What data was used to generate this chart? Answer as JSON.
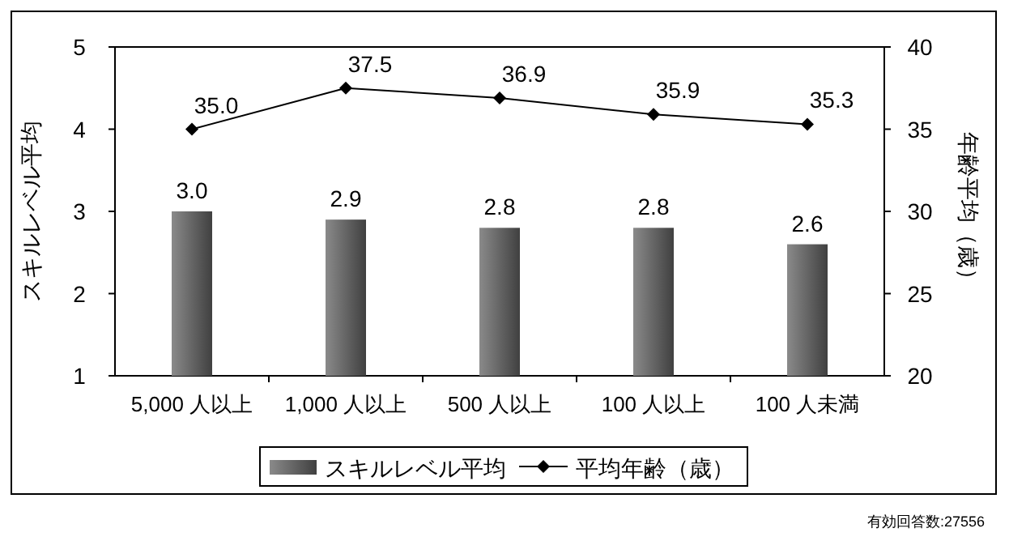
{
  "chart_data": {
    "type": "bar",
    "categories": [
      "5,000 人以上",
      "1,000 人以上",
      "500 人以上",
      "100 人以上",
      "100 人未満"
    ],
    "series": [
      {
        "name": "スキルレベル平均",
        "color": "#404040",
        "values": [
          3.0,
          2.9,
          2.8,
          2.8,
          2.6
        ],
        "value_labels": [
          "3.0",
          "2.9",
          "2.8",
          "2.8",
          "2.6"
        ]
      },
      {
        "name": "平均年齢（歳）",
        "type": "line",
        "axis": "y2",
        "color": "#000000",
        "values": [
          35.0,
          37.5,
          36.9,
          35.9,
          35.3
        ],
        "value_labels": [
          "35.0",
          "37.5",
          "36.9",
          "35.9",
          "35.3"
        ]
      }
    ],
    "ylabel": "スキルレベル平均",
    "y2label": "年齢平均（歳）",
    "ylim": [
      1,
      5
    ],
    "yticks": [
      1,
      2,
      3,
      4,
      5
    ],
    "y2lim": [
      20,
      40
    ],
    "y2ticks": [
      20,
      25,
      30,
      35,
      40
    ],
    "marker": "diamond",
    "line_style": "solid",
    "grid": false,
    "legend": "bottom",
    "annotations": [
      "有効回答数:27556"
    ]
  }
}
